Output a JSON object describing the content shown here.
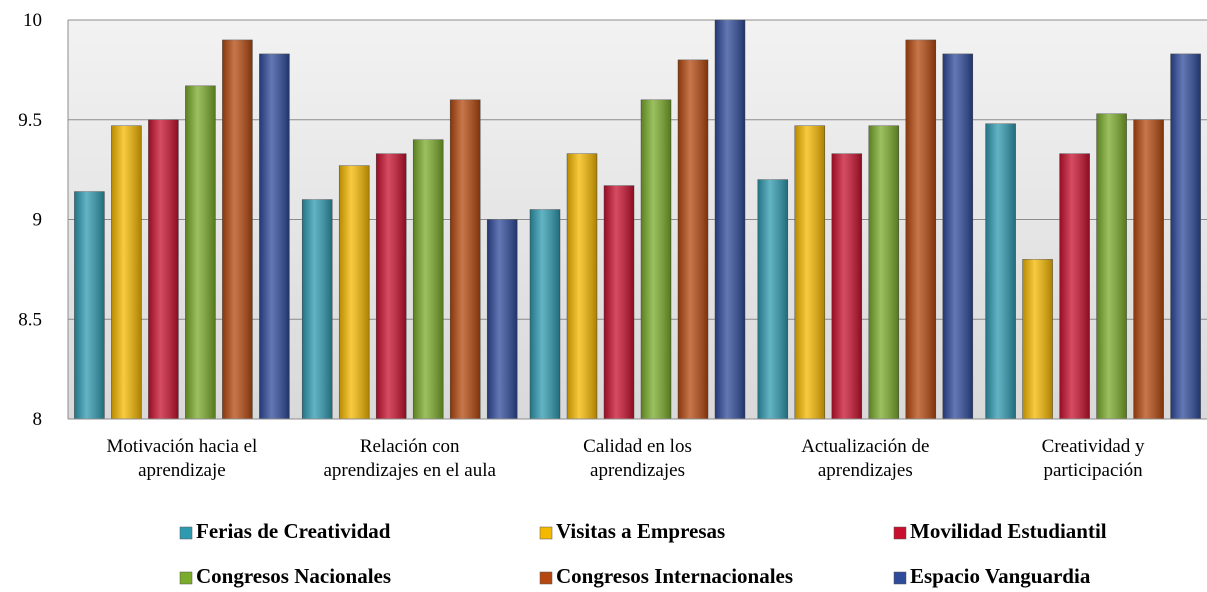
{
  "chart_data": {
    "type": "bar",
    "categories": [
      "Motivación hacia el\naprendizaje",
      "Relación con\naprendizajes en el aula",
      "Calidad en los\naprendizajes",
      "Actualización de\naprendizajes",
      "Creatividad y\nparticipación"
    ],
    "series": [
      {
        "name": "Ferias de Creatividad",
        "color": "#2e9ab0",
        "values": [
          9.14,
          9.1,
          9.05,
          9.2,
          9.48
        ]
      },
      {
        "name": "Visitas a Empresas",
        "color": "#f5b800",
        "values": [
          9.47,
          9.27,
          9.33,
          9.47,
          8.8
        ]
      },
      {
        "name": "Movilidad Estudiantil",
        "color": "#c8102e",
        "values": [
          9.5,
          9.33,
          9.17,
          9.33,
          9.33
        ]
      },
      {
        "name": "Congresos Nacionales",
        "color": "#7aab2a",
        "values": [
          9.67,
          9.4,
          9.6,
          9.47,
          9.53
        ]
      },
      {
        "name": "Congresos Internacionales",
        "color": "#b5480e",
        "values": [
          9.9,
          9.6,
          9.8,
          9.9,
          9.5
        ]
      },
      {
        "name": "Espacio Vanguardia",
        "color": "#2e4a9a",
        "values": [
          9.83,
          9.0,
          10.0,
          9.83,
          9.83
        ]
      }
    ],
    "ylim": [
      8,
      10
    ],
    "yticks": [
      8,
      8.5,
      9,
      9.5,
      10
    ],
    "grid": true,
    "legend": "bottom"
  }
}
